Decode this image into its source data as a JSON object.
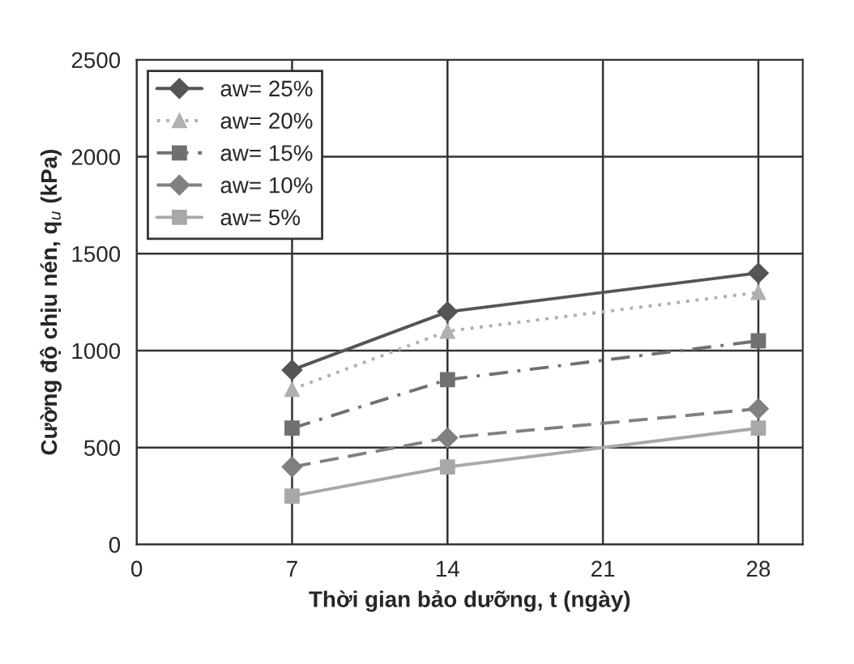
{
  "chart_data": {
    "type": "line",
    "xlabel": "Thời gian bảo dưỡng, t (ngày)",
    "ylabel": "Cường độ chịu nén, q$_{u}$ (kPa)",
    "x": [
      7,
      14,
      28
    ],
    "series": [
      {
        "name": "aw= 25%",
        "color": "#555555",
        "marker": "diamond",
        "line_style": "solid",
        "values": [
          900,
          1200,
          1400
        ]
      },
      {
        "name": "aw= 20%",
        "color": "#b0b0b0",
        "marker": "triangle",
        "line_style": "dotted",
        "values": [
          800,
          1100,
          1300
        ]
      },
      {
        "name": "aw= 15%",
        "color": "#707070",
        "marker": "square",
        "line_style": "dashdot",
        "values": [
          600,
          850,
          1050
        ]
      },
      {
        "name": "aw= 10%",
        "color": "#808080",
        "marker": "diamond",
        "line_style": "dashed",
        "values": [
          400,
          550,
          700
        ]
      },
      {
        "name": "aw= 5%",
        "color": "#a8a8a8",
        "marker": "square",
        "line_style": "solid",
        "values": [
          250,
          400,
          600
        ]
      }
    ],
    "xlim": [
      0,
      30
    ],
    "xticks": [
      0,
      7,
      14,
      21,
      28
    ],
    "ylim": [
      0,
      2500
    ],
    "yticks": [
      0,
      500,
      1000,
      1500,
      2000,
      2500
    ],
    "grid": true,
    "legend": "top left"
  }
}
